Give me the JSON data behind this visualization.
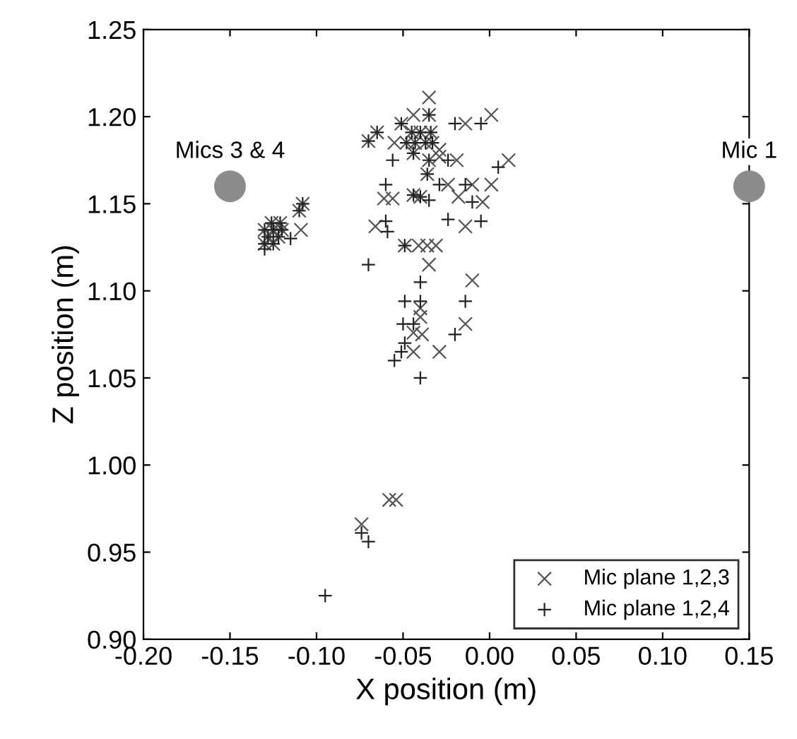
{
  "chart_data": {
    "type": "scatter",
    "xlabel": "X position (m)",
    "ylabel": "Z position (m)",
    "xlim": [
      -0.2,
      0.15
    ],
    "ylim": [
      0.9,
      1.25
    ],
    "xticks": [
      {
        "value": -0.2,
        "label": "-0.20"
      },
      {
        "value": -0.15,
        "label": "-0.15"
      },
      {
        "value": -0.1,
        "label": "-0.10"
      },
      {
        "value": -0.05,
        "label": "-0.05"
      },
      {
        "value": 0,
        "label": "0.00"
      },
      {
        "value": 0.05,
        "label": "0.05"
      },
      {
        "value": 0.1,
        "label": "0.10"
      },
      {
        "value": 0.15,
        "label": "0.15"
      }
    ],
    "yticks": [
      {
        "value": 0.9,
        "label": "0.90"
      },
      {
        "value": 0.95,
        "label": "0.95"
      },
      {
        "value": 1.0,
        "label": "1.00"
      },
      {
        "value": 1.05,
        "label": "1.05"
      },
      {
        "value": 1.1,
        "label": "1.10"
      },
      {
        "value": 1.15,
        "label": "1.15"
      },
      {
        "value": 1.2,
        "label": "1.20"
      },
      {
        "value": 1.25,
        "label": "1.25"
      }
    ],
    "grid": false,
    "legend": "bottom right",
    "annotations": [
      {
        "text": "Mics 3 & 4",
        "x": -0.15,
        "y": 1.16
      },
      {
        "text": "Mic 1",
        "x": 0.15,
        "y": 1.16
      }
    ],
    "series": [
      {
        "name": "Mic plane 1,2,3",
        "color": "#555555",
        "marker": "cross",
        "x": [
          -0.058,
          -0.054,
          -0.074,
          -0.108,
          -0.11,
          -0.109,
          -0.126,
          -0.121,
          -0.13,
          -0.125,
          -0.12,
          -0.128,
          -0.122,
          -0.13,
          -0.125,
          -0.035,
          -0.044,
          -0.035,
          -0.051,
          -0.014,
          0.001,
          -0.065,
          -0.07,
          -0.045,
          -0.04,
          -0.034,
          -0.043,
          -0.037,
          -0.033,
          -0.048,
          -0.055,
          -0.029,
          -0.044,
          -0.035,
          -0.029,
          -0.019,
          0.011,
          -0.036,
          -0.024,
          -0.01,
          0.001,
          -0.061,
          -0.056,
          -0.044,
          -0.04,
          -0.018,
          -0.004,
          -0.014,
          -0.066,
          -0.049,
          -0.041,
          -0.036,
          -0.031,
          -0.035,
          -0.01,
          -0.04,
          -0.04,
          -0.014,
          -0.044,
          -0.039,
          -0.044,
          -0.029
        ],
        "values": [
          0.98,
          0.98,
          0.966,
          1.15,
          1.146,
          1.135,
          1.139,
          1.139,
          1.135,
          1.135,
          1.135,
          1.131,
          1.131,
          1.127,
          1.127,
          1.211,
          1.201,
          1.201,
          1.196,
          1.196,
          1.201,
          1.191,
          1.186,
          1.191,
          1.191,
          1.191,
          1.185,
          1.185,
          1.185,
          1.185,
          1.185,
          1.181,
          1.179,
          1.175,
          1.177,
          1.175,
          1.175,
          1.167,
          1.161,
          1.161,
          1.161,
          1.153,
          1.153,
          1.155,
          1.154,
          1.154,
          1.151,
          1.137,
          1.137,
          1.126,
          1.126,
          1.126,
          1.126,
          1.115,
          1.106,
          1.09,
          1.085,
          1.081,
          1.076,
          1.075,
          1.065,
          1.065
        ]
      },
      {
        "name": "Mic plane 1,2,4",
        "color": "#222222",
        "marker": "plus",
        "x": [
          -0.074,
          -0.07,
          -0.095,
          -0.108,
          -0.11,
          -0.115,
          -0.13,
          -0.126,
          -0.121,
          -0.13,
          -0.125,
          -0.12,
          -0.128,
          -0.122,
          -0.13,
          -0.125,
          -0.035,
          -0.051,
          -0.02,
          -0.005,
          -0.065,
          -0.07,
          -0.045,
          -0.04,
          -0.034,
          -0.043,
          -0.037,
          -0.033,
          -0.048,
          -0.044,
          -0.056,
          -0.035,
          -0.024,
          0.005,
          -0.036,
          -0.06,
          -0.029,
          -0.014,
          -0.044,
          -0.04,
          -0.035,
          -0.01,
          -0.024,
          -0.005,
          -0.06,
          -0.059,
          -0.049,
          -0.07,
          -0.04,
          -0.049,
          -0.04,
          -0.014,
          -0.05,
          -0.044,
          -0.02,
          -0.049,
          -0.051,
          -0.055,
          -0.04
        ],
        "values": [
          0.961,
          0.956,
          0.925,
          1.15,
          1.146,
          1.13,
          1.124,
          1.139,
          1.139,
          1.135,
          1.135,
          1.135,
          1.131,
          1.131,
          1.127,
          1.127,
          1.201,
          1.196,
          1.196,
          1.196,
          1.191,
          1.186,
          1.191,
          1.191,
          1.191,
          1.185,
          1.185,
          1.185,
          1.185,
          1.179,
          1.175,
          1.175,
          1.175,
          1.171,
          1.167,
          1.161,
          1.161,
          1.161,
          1.155,
          1.154,
          1.152,
          1.151,
          1.141,
          1.14,
          1.14,
          1.134,
          1.126,
          1.115,
          1.105,
          1.094,
          1.094,
          1.094,
          1.081,
          1.081,
          1.075,
          1.07,
          1.065,
          1.06,
          1.05
        ]
      },
      {
        "color": "#8c8c8c",
        "marker": "circle",
        "x": [
          -0.15,
          0.15
        ],
        "values": [
          1.16,
          1.16
        ]
      }
    ]
  }
}
